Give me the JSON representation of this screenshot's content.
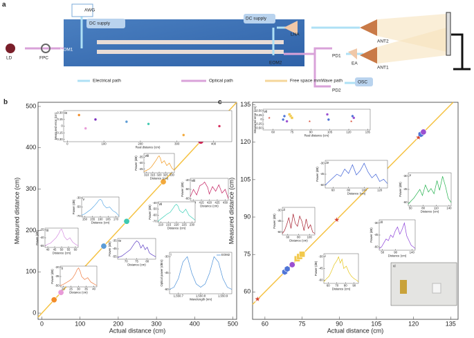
{
  "diagram": {
    "panel": "a",
    "ld": "LD",
    "fpc": "FPC",
    "awg": "AWG",
    "dc1": "DC supply",
    "eom1": "EOM1",
    "eom2": "EOM2",
    "dc2": "DC supply",
    "lna": "LNA",
    "ant2": "ANT2",
    "ant1": "ANT1",
    "pd1": "PD1",
    "ea": "EA",
    "pd2": "PD2",
    "osc": "OSC",
    "legend": [
      "Electrical path",
      "Optical path",
      "Free space mmWave path"
    ]
  },
  "photo": {
    "label": "vi"
  },
  "chart_data": [
    {
      "type": "scatter",
      "panel": "b",
      "xlabel": "Actual distance (cm)",
      "ylabel": "Measured distance (cm)",
      "line_color": "#f5c242",
      "x": [
        32,
        50,
        77,
        162,
        222,
        318,
        416
      ],
      "values": [
        32.25,
        49.95,
        77.15,
        162.1,
        222.05,
        317.8,
        416
      ],
      "colors": [
        "#f28c28",
        "#e89ad8",
        "#7b2fbe",
        "#5b9bd5",
        "#3ec9b0",
        "#f2a93b",
        "#d62c5b"
      ],
      "xlim": [
        -10,
        510
      ],
      "ylim": [
        -15,
        510
      ],
      "xticks": [
        0,
        100,
        200,
        300,
        400,
        500
      ],
      "yticks": [
        0,
        100,
        200,
        300,
        400,
        500
      ]
    },
    {
      "type": "scatter",
      "label": "ix",
      "xlabel": "Real distance (cm)",
      "ylabel": "Measured error (cm)",
      "x": [
        32,
        50,
        77,
        162,
        222,
        318,
        416
      ],
      "values": [
        0.25,
        -0.05,
        0.15,
        0.1,
        0.05,
        -0.2,
        0.0
      ],
      "colors": [
        "#f28c28",
        "#e89ad8",
        "#7b2fbe",
        "#5b9bd5",
        "#3ec9b0",
        "#f2a93b",
        "#d62c5b"
      ],
      "xlim": [
        -10,
        450
      ],
      "ylim": [
        -0.35,
        0.35
      ],
      "xticks": [
        0,
        100,
        200,
        300,
        400
      ],
      "yticks": [
        {
          "value": 0.3,
          "label": "0.30"
        },
        0.15,
        0,
        -0.15,
        {
          "value": -0.3,
          "label": "-0.30"
        }
      ]
    },
    {
      "type": "line",
      "label": "viii",
      "xlabel": "Distance (cm)",
      "ylabel": "Power (dB)",
      "color": "#f29a1f",
      "x": [
        308,
        310,
        312,
        314,
        316,
        318,
        319,
        320,
        321,
        322,
        324,
        326,
        328,
        330,
        332
      ],
      "values": [
        -47,
        -46,
        -45,
        -43,
        -40,
        -37,
        -35,
        -34,
        -36,
        -40,
        -38,
        -42,
        -40,
        -44,
        -46
      ],
      "xlim": [
        308,
        332
      ],
      "ylim": [
        -48,
        -32
      ],
      "xticks": [
        310,
        315,
        320,
        325,
        330
      ],
      "yticks": [
        -35,
        -40,
        -45
      ]
    },
    {
      "type": "line",
      "label": "viii",
      "xlabel": "Distance (cm)",
      "ylabel": "Power (dB)",
      "color": "#c2185b",
      "x": [
        408,
        410,
        412,
        414,
        416,
        417,
        418,
        419,
        420,
        422,
        424,
        426,
        428,
        430,
        432
      ],
      "values": [
        -58,
        -50,
        -56,
        -46,
        -44,
        -42,
        -45,
        -48,
        -55,
        -47,
        -52,
        -45,
        -54,
        -50,
        -60
      ],
      "xlim": [
        408,
        432
      ],
      "ylim": [
        -62,
        -38
      ],
      "xticks": [
        410,
        415,
        420,
        425,
        430
      ],
      "yticks": [
        -40,
        -50,
        -60
      ]
    },
    {
      "type": "line",
      "label": "v",
      "xlabel": "Distance (cm)",
      "ylabel": "Power (dB)",
      "color": "#5aa9e6",
      "x": [
        148,
        150,
        152,
        154,
        156,
        158,
        159,
        160,
        161,
        162,
        164,
        166,
        168,
        170,
        172
      ],
      "values": [
        -68,
        -65,
        -60,
        -55,
        -48,
        -40,
        -35,
        -33,
        -36,
        -45,
        -52,
        -50,
        -58,
        -62,
        -70
      ],
      "xlim": [
        148,
        172
      ],
      "ylim": [
        -72,
        -28
      ],
      "xticks": [
        150,
        155,
        160,
        165,
        170
      ],
      "yticks": [
        -30,
        -50,
        -70
      ]
    },
    {
      "type": "line",
      "label": "vii",
      "xlabel": "Distance (cm)",
      "ylabel": "Power (dB)",
      "color": "#3fd0b8",
      "x": [
        208,
        210,
        212,
        214,
        216,
        218,
        219,
        220,
        221,
        222,
        224,
        226,
        228,
        230,
        232
      ],
      "values": [
        -70,
        -66,
        -62,
        -58,
        -55,
        -48,
        -44,
        -42,
        -45,
        -52,
        -56,
        -50,
        -60,
        -64,
        -68
      ],
      "xlim": [
        208,
        232
      ],
      "ylim": [
        -72,
        -38
      ],
      "xticks": [
        210,
        215,
        220,
        225,
        230
      ],
      "yticks": [
        -40,
        -50,
        -60,
        -70
      ]
    },
    {
      "type": "line",
      "label": "iii",
      "xlabel": "Distance (cm)",
      "ylabel": "Power (dB)",
      "color": "#d58ee0",
      "x": [
        38,
        40,
        42,
        44,
        46,
        48,
        49,
        50,
        51,
        52,
        54,
        56,
        58,
        60,
        62
      ],
      "values": [
        -55,
        -52,
        -50,
        -45,
        -40,
        -32,
        -26,
        -24,
        -30,
        -38,
        -44,
        -40,
        -48,
        -52,
        -55
      ],
      "xlim": [
        38,
        62
      ],
      "ylim": [
        -58,
        -22
      ],
      "xticks": [
        40,
        45,
        50,
        55,
        60
      ],
      "yticks": [
        -25,
        -40,
        -55
      ]
    },
    {
      "type": "line",
      "label": "iv",
      "xlabel": "Distance (cm)",
      "ylabel": "Power (dB)",
      "color": "#5b3cc4",
      "x": [
        66,
        68,
        70,
        72,
        73,
        74,
        75,
        76,
        77,
        78,
        79,
        80,
        81,
        82,
        84
      ],
      "values": [
        -56,
        -54,
        -50,
        -46,
        -42,
        -38,
        -35,
        -37,
        -44,
        -40,
        -46,
        -43,
        -50,
        -52,
        -55
      ],
      "xlim": [
        66,
        84
      ],
      "ylim": [
        -58,
        -32
      ],
      "xticks": [
        70,
        75,
        80
      ],
      "yticks": [
        -35,
        -45,
        -55
      ]
    },
    {
      "type": "line",
      "label": "ii",
      "xlabel": "Distance (cm)",
      "ylabel": "Power (dB)",
      "color": "#f07b3f",
      "x": [
        18,
        20,
        22,
        24,
        26,
        28,
        29,
        30,
        31,
        32,
        34,
        36,
        38,
        40,
        42
      ],
      "values": [
        -50,
        -48,
        -45,
        -42,
        -38,
        -30,
        -24,
        -21,
        -26,
        -35,
        -40,
        -37,
        -44,
        -47,
        -50
      ],
      "xlim": [
        18,
        42
      ],
      "ylim": [
        -52,
        -18
      ],
      "xticks": [
        20,
        25,
        30,
        35,
        40
      ],
      "yticks": [
        -20,
        -35,
        -50
      ]
    },
    {
      "type": "line",
      "label": "i",
      "legend": "EOM2",
      "xlabel": "Wavelength (nm)",
      "ylabel": "Optical power (dBm)",
      "color": "#4a90d9",
      "x": [
        1550.66,
        1550.68,
        1550.7,
        1550.72,
        1550.74,
        1550.76,
        1550.78,
        1550.8,
        1550.82,
        1550.84,
        1550.86,
        1550.88,
        1550.9,
        1550.92,
        1550.94
      ],
      "values": [
        -60,
        -58,
        -50,
        -35,
        -30,
        -45,
        -55,
        -58,
        -55,
        -45,
        -30,
        -35,
        -50,
        -58,
        -60
      ],
      "xlim": [
        1550.66,
        1550.94
      ],
      "ylim": [
        -64,
        -26
      ],
      "xticks": [
        {
          "value": 1550.7,
          "label": "1,550.7"
        },
        {
          "value": 1550.8,
          "label": "1,550.8"
        },
        {
          "value": 1550.9,
          "label": "1,550.9"
        }
      ],
      "yticks": [
        -30,
        -45,
        -60
      ]
    },
    {
      "type": "scatter",
      "panel": "c",
      "xlabel": "Actual distance (cm)",
      "ylabel": "Measured distance (cm)",
      "line_color": "#f5c242",
      "x": [
        57,
        68,
        69,
        71,
        73,
        74,
        75,
        89,
        103,
        104,
        122,
        123,
        124
      ],
      "values": [
        57.1,
        68.0,
        69.2,
        70.9,
        73.3,
        74.2,
        75.1,
        88.9,
        103.3,
        104.0,
        121.9,
        123.2,
        124.1
      ],
      "markers": [
        "star",
        "hex",
        "hex",
        "circle",
        "square",
        "square",
        "square",
        "star",
        "circle",
        "hex",
        "star",
        "hex",
        "circle"
      ],
      "colors": [
        "#d6452f",
        "#4f74d6",
        "#4f74d6",
        "#9a4fd1",
        "#f2c94c",
        "#f2c94c",
        "#f2c94c",
        "#d6452f",
        "#9a4fd1",
        "#4f74d6",
        "#d6452f",
        "#4f74d6",
        "#9a4fd1"
      ],
      "xlim": [
        55,
        138
      ],
      "ylim": [
        49,
        136
      ],
      "xticks": [
        60,
        75,
        90,
        105,
        120,
        135
      ],
      "yticks": [
        60,
        75,
        90,
        105,
        120,
        135
      ]
    },
    {
      "type": "scatter",
      "label": "vii",
      "xlabel": "Real distance (cm)",
      "ylabel": "Measured error (cm)",
      "x": [
        57,
        68,
        69,
        71,
        73,
        74,
        75,
        89,
        103,
        104,
        122,
        123,
        124
      ],
      "values": [
        0.1,
        0,
        0.2,
        -0.1,
        0.3,
        0.2,
        0.1,
        -0.1,
        0.3,
        0,
        -0.1,
        0.2,
        0.1
      ],
      "markers": [
        "star",
        "hex",
        "hex",
        "circle",
        "square",
        "square",
        "square",
        "star",
        "circle",
        "hex",
        "star",
        "hex",
        "circle"
      ],
      "colors": [
        "#d6452f",
        "#4f74d6",
        "#4f74d6",
        "#9a4fd1",
        "#f2c94c",
        "#f2c94c",
        "#f2c94c",
        "#d6452f",
        "#9a4fd1",
        "#4f74d6",
        "#d6452f",
        "#4f74d6",
        "#9a4fd1"
      ],
      "xlim": [
        52,
        137
      ],
      "ylim": [
        -0.6,
        0.6
      ],
      "xticks": [
        60,
        75,
        90,
        105,
        120,
        135
      ],
      "yticks": [
        {
          "value": 0.5,
          "label": "0.50"
        },
        0.25,
        0,
        -0.25,
        {
          "value": -0.5,
          "label": "-0.50"
        }
      ]
    },
    {
      "type": "line",
      "label": "iv",
      "xlabel": "Distance (cm)",
      "ylabel": "Power (dB)",
      "color": "#3b5fd6",
      "x": [
        50,
        55,
        60,
        65,
        70,
        75,
        80,
        85,
        90,
        95,
        100,
        105,
        110,
        115,
        120,
        125,
        130
      ],
      "values": [
        -60,
        -55,
        -50,
        -45,
        -48,
        -38,
        -44,
        -32,
        -46,
        -40,
        -30,
        -42,
        -50,
        -45,
        -55,
        -52,
        -58
      ],
      "xlim": [
        50,
        130
      ],
      "ylim": [
        -64,
        -26
      ],
      "xticks": [
        60,
        80,
        100,
        120
      ],
      "yticks": [
        -30,
        -45,
        -60
      ]
    },
    {
      "type": "line",
      "label": "v",
      "xlabel": "Distance (cm)",
      "ylabel": "Power (dB)",
      "color": "#22b14c",
      "x": [
        45,
        52,
        58,
        65,
        72,
        78,
        85,
        92,
        98,
        105,
        112,
        118,
        125,
        132,
        138,
        145
      ],
      "values": [
        -62,
        -58,
        -55,
        -50,
        -45,
        -52,
        -40,
        -48,
        -44,
        -50,
        -35,
        -46,
        -30,
        -42,
        -55,
        -60
      ],
      "xlim": [
        45,
        145
      ],
      "ylim": [
        -64,
        -26
      ],
      "xticks": [
        50,
        80,
        110,
        140
      ],
      "yticks": [
        -30,
        -45,
        -60
      ]
    },
    {
      "type": "line",
      "label": "ii",
      "xlabel": "Distance (cm)",
      "ylabel": "Power (dB)",
      "color": "#a61c2c",
      "x": [
        50,
        54,
        58,
        62,
        66,
        70,
        74,
        78,
        82,
        86,
        90,
        94,
        98,
        102,
        106,
        110
      ],
      "values": [
        -62,
        -58,
        -50,
        -40,
        -55,
        -35,
        -48,
        -52,
        -38,
        -45,
        -58,
        -42,
        -55,
        -50,
        -60,
        -62
      ],
      "xlim": [
        50,
        110
      ],
      "ylim": [
        -64,
        -26
      ],
      "xticks": [
        60,
        80,
        100
      ],
      "yticks": [
        -30,
        -45,
        -60
      ]
    },
    {
      "type": "line",
      "label": "iii",
      "xlabel": "Distance (cm)",
      "ylabel": "Power (dB)",
      "color": "#8b3fd9",
      "x": [
        40,
        47,
        54,
        61,
        68,
        75,
        82,
        89,
        96,
        103,
        110,
        117,
        124,
        131,
        138,
        145,
        150
      ],
      "values": [
        -62,
        -60,
        -55,
        -50,
        -52,
        -45,
        -48,
        -40,
        -35,
        -44,
        -38,
        -30,
        -46,
        -52,
        -58,
        -60,
        -62
      ],
      "xlim": [
        40,
        150
      ],
      "ylim": [
        -64,
        -26
      ],
      "xticks": [
        50,
        90,
        140
      ],
      "yticks": [
        -30,
        -45,
        -60
      ]
    },
    {
      "type": "line",
      "label": "i",
      "xlabel": "Distance (cm)",
      "ylabel": "Power (dB)",
      "color": "#e6c619",
      "x": [
        55,
        58,
        61,
        64,
        67,
        70,
        72,
        74,
        76,
        78,
        81,
        84,
        87,
        90,
        93,
        95
      ],
      "values": [
        -62,
        -58,
        -55,
        -48,
        -40,
        -35,
        -30,
        -38,
        -33,
        -45,
        -42,
        -50,
        -55,
        -58,
        -60,
        -62
      ],
      "xlim": [
        55,
        95
      ],
      "ylim": [
        -64,
        -26
      ],
      "xticks": [
        60,
        70,
        80,
        90
      ],
      "yticks": [
        -30,
        -45,
        -60
      ]
    }
  ]
}
